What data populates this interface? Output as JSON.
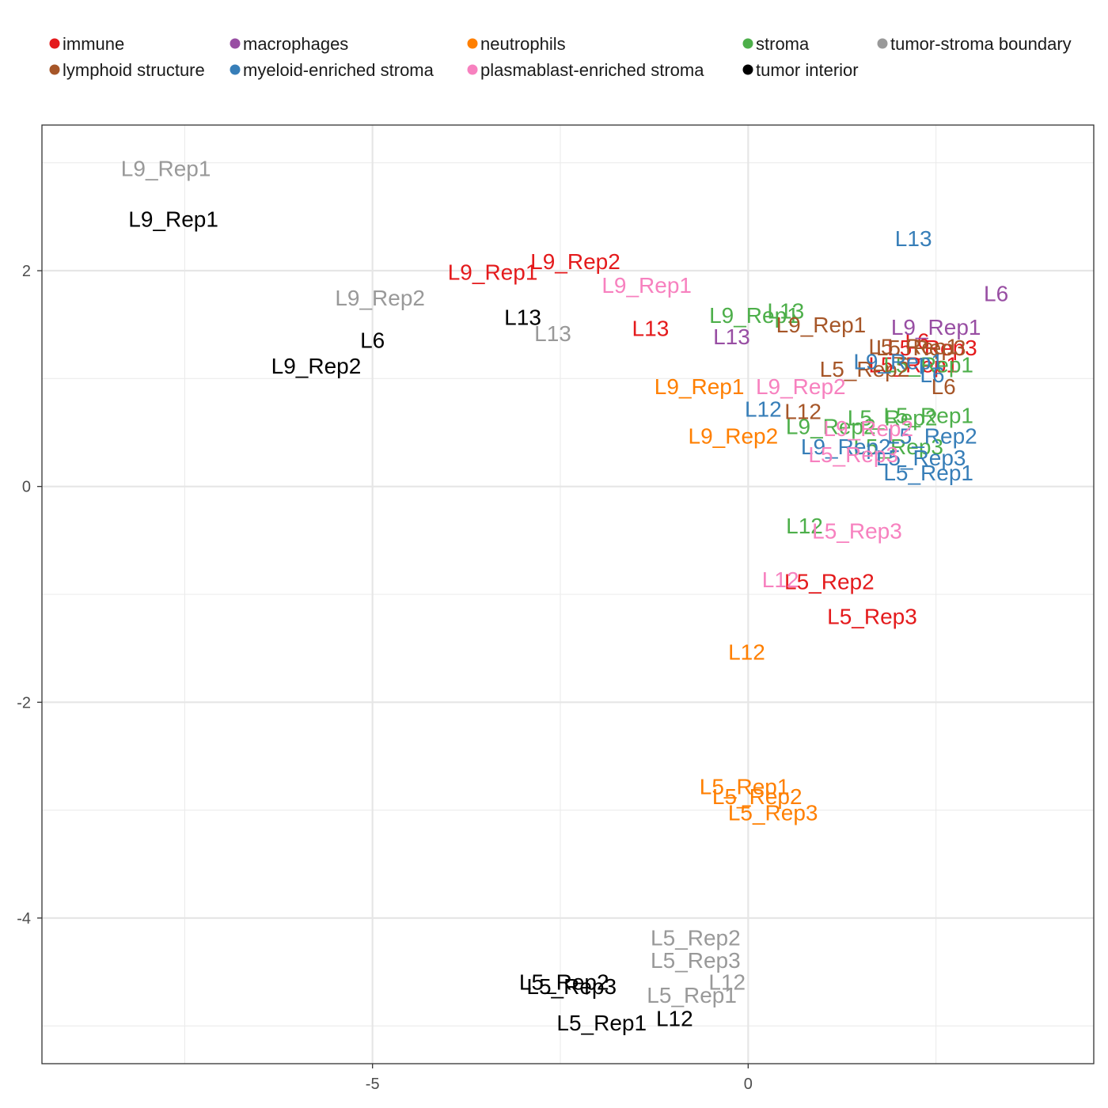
{
  "chart_data": {
    "type": "scatter",
    "title": "",
    "xlabel": "",
    "ylabel": "",
    "xlim": [
      -9.4,
      4.6
    ],
    "ylim": [
      -5.35,
      3.35
    ],
    "x_ticks": [
      -5,
      0
    ],
    "y_ticks": [
      2,
      0,
      -2,
      -4
    ],
    "x_tick_labels": [
      "-5",
      "0"
    ],
    "y_tick_labels": [
      "2",
      "0",
      "-2",
      "-4"
    ],
    "grid": true,
    "legend_position": "top",
    "series": [
      {
        "name": "immune",
        "color": "#E41A1C",
        "points": [
          {
            "label": "L9_Rep2",
            "x": -2.3,
            "y": 2.09
          },
          {
            "label": "L9_Rep1",
            "x": -3.4,
            "y": 1.99
          },
          {
            "label": "L13",
            "x": -1.3,
            "y": 1.47
          },
          {
            "label": "L5_Rep3",
            "x": 2.45,
            "y": 1.29
          },
          {
            "label": "L6",
            "x": 2.25,
            "y": 1.35
          },
          {
            "label": "L5_Rep1",
            "x": 2.2,
            "y": 1.13
          },
          {
            "label": "L5_Rep2",
            "x": 1.08,
            "y": -0.88
          },
          {
            "label": "L5_Rep3",
            "x": 1.65,
            "y": -1.2
          }
        ]
      },
      {
        "name": "macrophages",
        "color": "#984EA3",
        "points": [
          {
            "label": "L6",
            "x": 3.3,
            "y": 1.79
          },
          {
            "label": "L9_Rep1",
            "x": 2.5,
            "y": 1.48
          },
          {
            "label": "L13",
            "x": -0.22,
            "y": 1.39
          }
        ]
      },
      {
        "name": "neutrophils",
        "color": "#FF7F00",
        "points": [
          {
            "label": "L9_Rep1",
            "x": -0.65,
            "y": 0.93
          },
          {
            "label": "L9_Rep2",
            "x": -0.2,
            "y": 0.47
          },
          {
            "label": "L12",
            "x": -0.02,
            "y": -1.53
          },
          {
            "label": "L5_Rep1",
            "x": -0.05,
            "y": -2.78
          },
          {
            "label": "L5_Rep2",
            "x": 0.12,
            "y": -2.87
          },
          {
            "label": "L5_Rep3",
            "x": 0.33,
            "y": -3.02
          }
        ]
      },
      {
        "name": "stroma",
        "color": "#4DAF4A",
        "points": [
          {
            "label": "L13",
            "x": 0.5,
            "y": 1.63
          },
          {
            "label": "L9_Rep1",
            "x": 0.08,
            "y": 1.59
          },
          {
            "label": "L5_Rep1",
            "x": 2.4,
            "y": 1.13
          },
          {
            "label": "L5_Rep1",
            "x": 2.4,
            "y": 0.66
          },
          {
            "label": "L5_Rep2",
            "x": 1.92,
            "y": 0.64
          },
          {
            "label": "L9_Rep2",
            "x": 1.1,
            "y": 0.56
          },
          {
            "label": "L5_Rep3",
            "x": 2.0,
            "y": 0.37
          },
          {
            "label": "L12",
            "x": 0.75,
            "y": -0.36
          }
        ]
      },
      {
        "name": "tumor-stroma boundary",
        "color": "#999999",
        "points": [
          {
            "label": "L9_Rep1",
            "x": -7.75,
            "y": 2.95
          },
          {
            "label": "L9_Rep2",
            "x": -4.9,
            "y": 1.75
          },
          {
            "label": "L13",
            "x": -2.6,
            "y": 1.42
          },
          {
            "label": "L5_Rep2",
            "x": -0.7,
            "y": -4.18
          },
          {
            "label": "L5_Rep3",
            "x": -0.7,
            "y": -4.39
          },
          {
            "label": "L12",
            "x": -0.28,
            "y": -4.59
          },
          {
            "label": "L5_Rep1",
            "x": -0.75,
            "y": -4.71
          }
        ]
      },
      {
        "name": "lymphoid structure",
        "color": "#A65628",
        "points": [
          {
            "label": "L9_Rep1",
            "x": 0.97,
            "y": 1.5
          },
          {
            "label": "L5_Rep1",
            "x": 2.2,
            "y": 1.3
          },
          {
            "label": "L5_Rep3",
            "x": 2.3,
            "y": 1.29
          },
          {
            "label": "L5_Rep2",
            "x": 1.55,
            "y": 1.09
          },
          {
            "label": "L6",
            "x": 2.6,
            "y": 0.93
          },
          {
            "label": "L12",
            "x": 0.73,
            "y": 0.7
          }
        ]
      },
      {
        "name": "myeloid-enriched stroma",
        "color": "#377EB8",
        "points": [
          {
            "label": "L13",
            "x": 2.2,
            "y": 2.3
          },
          {
            "label": "L9_Rep1",
            "x": 2.0,
            "y": 1.16
          },
          {
            "label": "L6",
            "x": 2.45,
            "y": 1.04
          },
          {
            "label": "L12",
            "x": 0.2,
            "y": 0.72
          },
          {
            "label": "L5_Rep2",
            "x": 2.45,
            "y": 0.47
          },
          {
            "label": "L9_Rep2",
            "x": 1.3,
            "y": 0.37
          },
          {
            "label": "L5_Rep3",
            "x": 2.3,
            "y": 0.27
          },
          {
            "label": "L5_Rep1",
            "x": 2.4,
            "y": 0.13
          }
        ]
      },
      {
        "name": "plasmablast-enriched stroma",
        "color": "#F781BF",
        "points": [
          {
            "label": "L9_Rep1",
            "x": -1.35,
            "y": 1.87
          },
          {
            "label": "L9_Rep2",
            "x": 0.7,
            "y": 0.93
          },
          {
            "label": "L9_Rep2",
            "x": 1.6,
            "y": 0.54
          },
          {
            "label": "L5_Rep3",
            "x": 1.4,
            "y": 0.3
          },
          {
            "label": "L5_Rep3",
            "x": 1.45,
            "y": -0.41
          },
          {
            "label": "L12",
            "x": 0.43,
            "y": -0.86
          }
        ]
      },
      {
        "name": "tumor interior",
        "color": "#000000",
        "points": [
          {
            "label": "L9_Rep1",
            "x": -7.65,
            "y": 2.48
          },
          {
            "label": "L6",
            "x": -5.0,
            "y": 1.36
          },
          {
            "label": "L9_Rep2",
            "x": -5.75,
            "y": 1.12
          },
          {
            "label": "L13",
            "x": -3.0,
            "y": 1.57
          },
          {
            "label": "L5_Rep2",
            "x": -2.45,
            "y": -4.59
          },
          {
            "label": "L5_Rep3",
            "x": -2.35,
            "y": -4.63
          },
          {
            "label": "L5_Rep1",
            "x": -1.95,
            "y": -4.97
          },
          {
            "label": "L12",
            "x": -0.98,
            "y": -4.93
          }
        ]
      }
    ]
  }
}
